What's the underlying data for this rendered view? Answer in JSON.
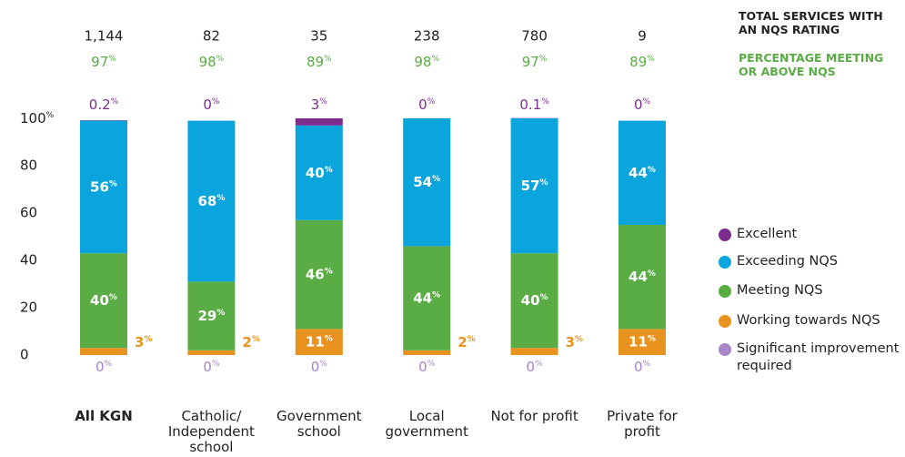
{
  "chart_data": {
    "type": "stacked_bar",
    "categories": [
      "All KGN",
      "Catholic/ Independent school",
      "Government school",
      "Local government",
      "Not for profit",
      "Private for profit"
    ],
    "totals": {
      "name": "TOTAL SERVICES WITH AN NQS RATING",
      "color": "#222222",
      "values": [
        1144,
        82,
        35,
        238,
        780,
        9
      ],
      "value_labels": [
        "1,144",
        "82",
        "35",
        "238",
        "780",
        "9"
      ]
    },
    "meeting_or_above": {
      "name": "PERCENTAGE MEETING OR ABOVE NQS",
      "color": "#5aac44",
      "values": [
        97,
        98,
        89,
        98,
        97,
        89
      ],
      "value_labels": [
        "97%",
        "98%",
        "89%",
        "98%",
        "97%",
        "89%"
      ]
    },
    "series": [
      {
        "name": "Significant improvement required",
        "color": "#a884c8",
        "values": [
          0,
          0,
          0,
          0,
          0,
          0
        ],
        "value_labels": [
          "0%",
          "0%",
          "0%",
          "0%",
          "0%",
          "0%"
        ]
      },
      {
        "name": "Working towards NQS",
        "color": "#e8931e",
        "values": [
          3,
          2,
          11,
          2,
          3,
          11
        ],
        "value_labels": [
          "3%",
          "2%",
          "11%",
          "2%",
          "3%",
          "11%"
        ]
      },
      {
        "name": "Meeting NQS",
        "color": "#5aac44",
        "values": [
          40,
          29,
          46,
          44,
          40,
          44
        ],
        "value_labels": [
          "40%",
          "29%",
          "46%",
          "44%",
          "40%",
          "44%"
        ]
      },
      {
        "name": "Exceeding NQS",
        "color": "#0aa5dc",
        "values": [
          56,
          68,
          40,
          54,
          57,
          44
        ],
        "value_labels": [
          "56%",
          "68%",
          "40%",
          "54%",
          "57%",
          "44%"
        ]
      },
      {
        "name": "Excellent",
        "color": "#7b2d8e",
        "values": [
          0.2,
          0,
          3,
          0,
          0.1,
          0
        ],
        "value_labels": [
          "0.2%",
          "0%",
          "3%",
          "0%",
          "0.1%",
          "0%"
        ]
      }
    ],
    "ylim": [
      0,
      100
    ],
    "yticks": [
      0,
      20,
      40,
      60,
      80,
      {
        "value": 100,
        "label": "100%"
      }
    ],
    "grid": false,
    "legend": "right"
  }
}
